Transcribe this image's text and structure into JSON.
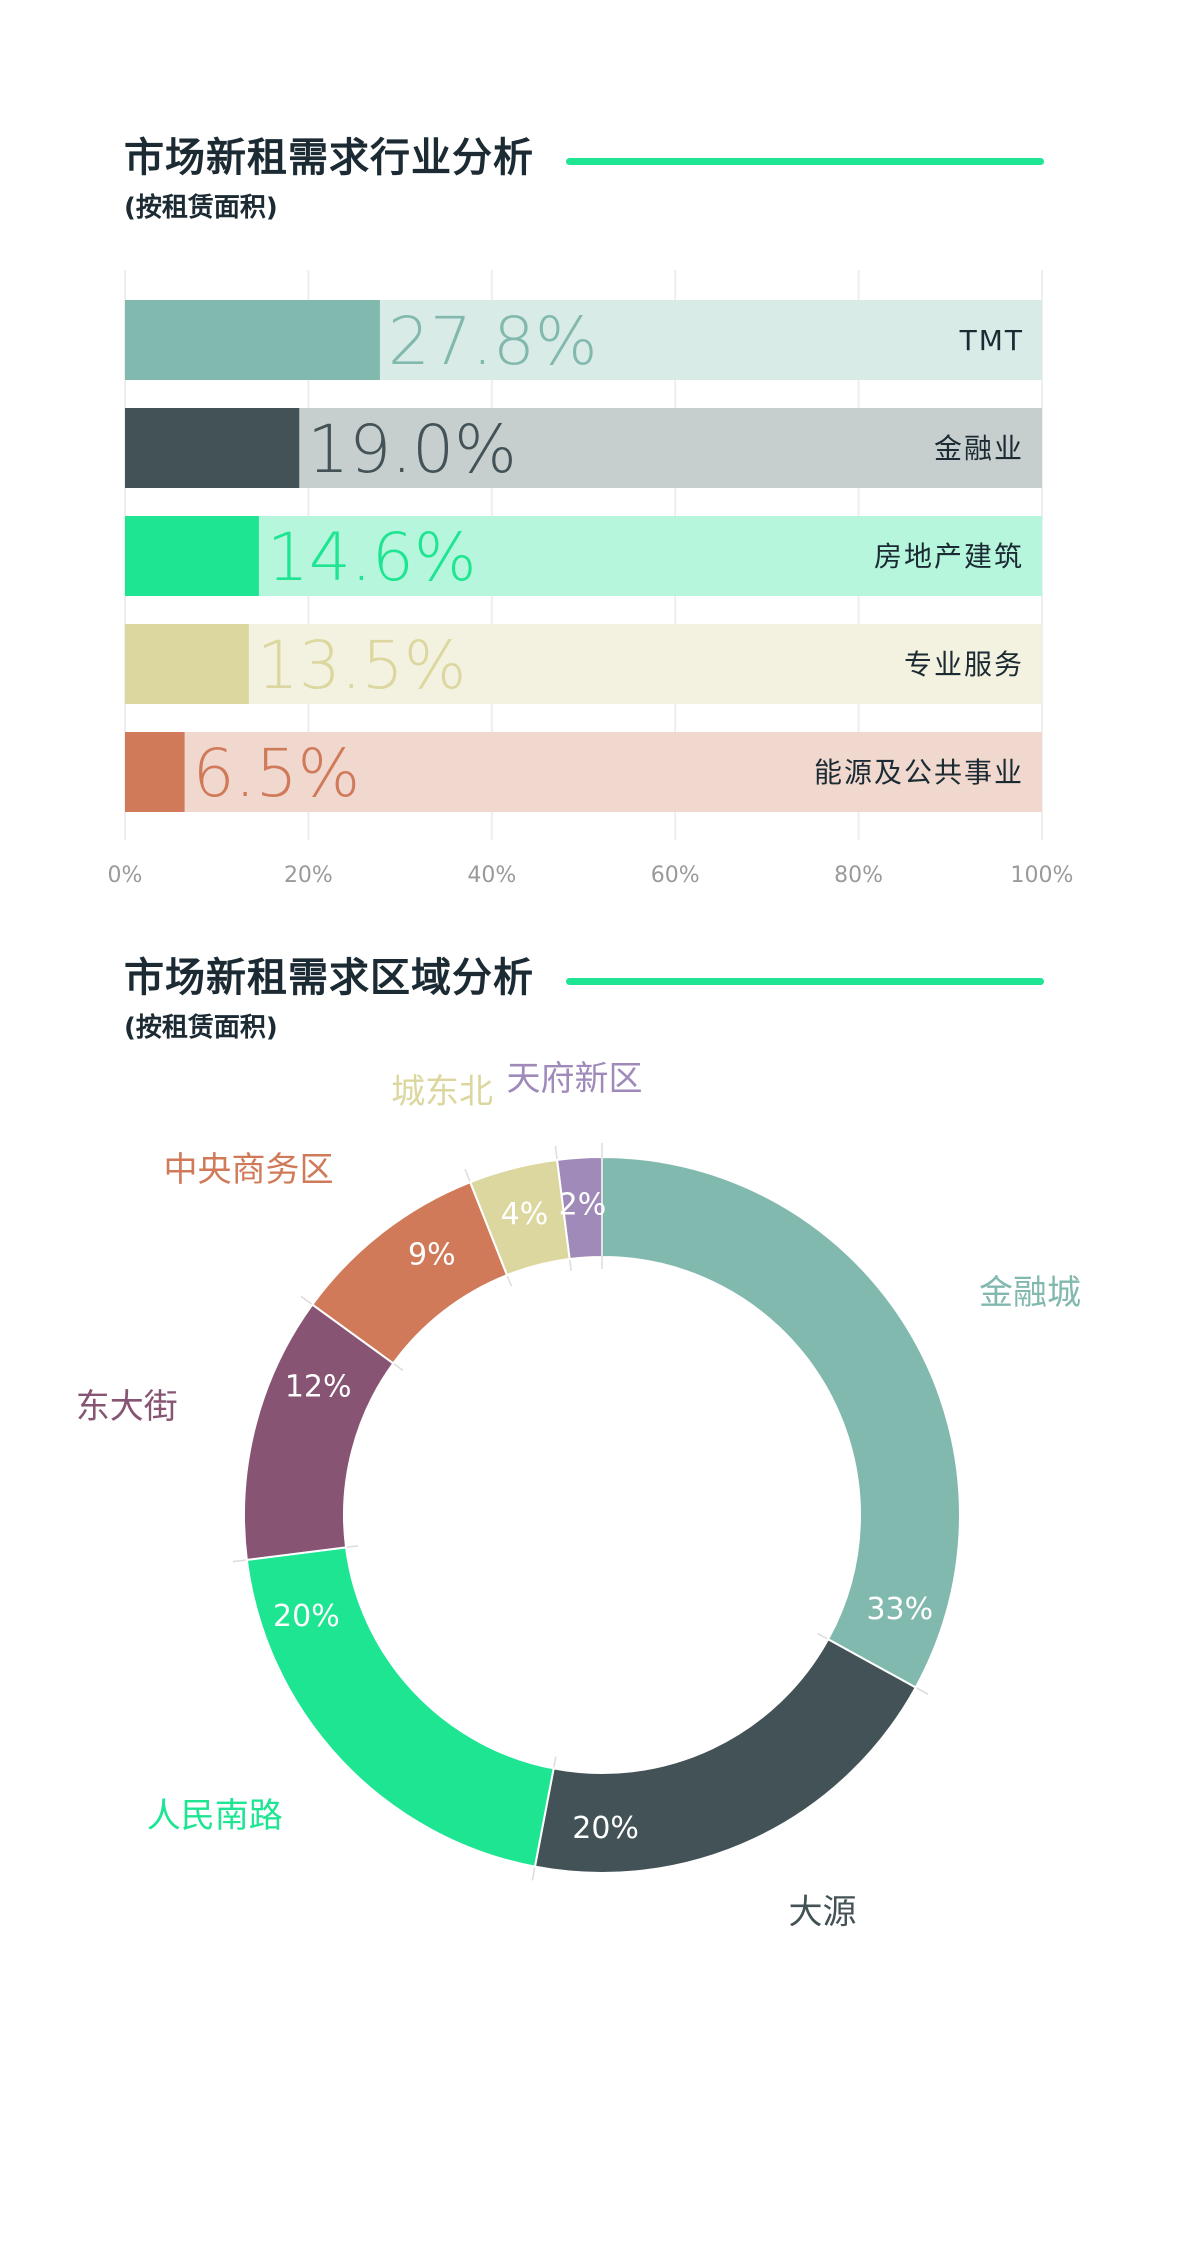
{
  "industry_section": {
    "title": "市场新租需求行业分析",
    "subtitle": "(按租赁面积)"
  },
  "region_section": {
    "title": "市场新租需求区域分析",
    "subtitle": "(按租赁面积)"
  },
  "colors": {
    "accent_rule": "#1de592",
    "title_text": "#1c2b33"
  },
  "chart_data": [
    {
      "type": "bar",
      "orientation": "horizontal",
      "categories": [
        "TMT",
        "金融业",
        "房地产建筑",
        "专业服务",
        "能源及公共事业"
      ],
      "values": [
        27.8,
        19.0,
        14.6,
        13.5,
        6.5
      ],
      "value_labels": [
        "27.8%",
        "19.0%",
        "14.6%",
        "13.5%",
        "6.5%"
      ],
      "colors": [
        "#82b9ae",
        "#435256",
        "#1de592",
        "#dbd79f",
        "#d07a5a"
      ],
      "track_colors": [
        "#d9ebe7",
        "#c7cfce",
        "#b6f6dc",
        "#f3f2e1",
        "#f0d8cf"
      ],
      "xlim": [
        0,
        100
      ],
      "x_ticks": [
        "0%",
        "20%",
        "40%",
        "60%",
        "80%",
        "100%"
      ],
      "x_tick_values": [
        0,
        20,
        40,
        60,
        80,
        100
      ],
      "grid": true
    },
    {
      "type": "pie",
      "donut": true,
      "labels": [
        "金融城",
        "大源",
        "人民南路",
        "东大街",
        "中央商务区",
        "城东北",
        "天府新区"
      ],
      "values": [
        33,
        20,
        20,
        12,
        9,
        4,
        2
      ],
      "value_labels": [
        "33%",
        "20%",
        "20%",
        "12%",
        "9%",
        "4%",
        "2%"
      ],
      "colors": [
        "#82b9ae",
        "#435256",
        "#1de592",
        "#875473",
        "#d07a5a",
        "#dbd79f",
        "#a08ab9"
      ]
    }
  ]
}
